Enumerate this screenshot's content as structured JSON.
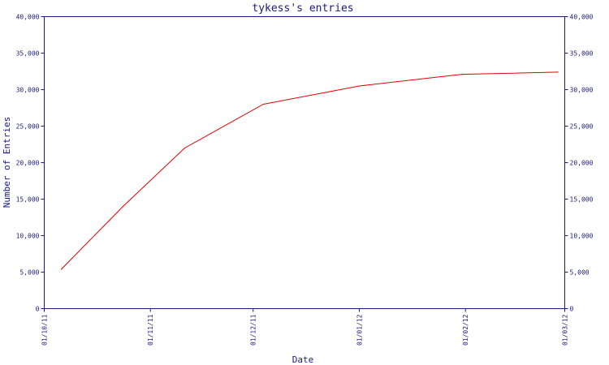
{
  "chart_data": {
    "type": "line",
    "title": "tykess's entries",
    "xlabel": "Date",
    "ylabel": "Number of Entries",
    "ylim": [
      0,
      40000
    ],
    "yticks": [
      0,
      5000,
      10000,
      15000,
      20000,
      25000,
      30000,
      35000,
      40000
    ],
    "ytick_labels": [
      "0",
      "5,000",
      "10,000",
      "15,000",
      "20,000",
      "25,000",
      "30,000",
      "35,000",
      "40,000"
    ],
    "xlim": [
      "2011-10-01",
      "2012-03-01"
    ],
    "xticks": [
      "2011-10-01",
      "2011-11-01",
      "2011-12-01",
      "2012-01-01",
      "2012-02-01",
      "2012-03-01"
    ],
    "xtick_labels": [
      "01/10/11",
      "01/11/11",
      "01/12/11",
      "01/01/12",
      "01/02/12",
      "01/03/12"
    ],
    "grid": false,
    "series": [
      {
        "color": "#e00000",
        "points": [
          [
            "2011-10-06",
            5400
          ],
          [
            "2011-10-24",
            14000
          ],
          [
            "2011-11-11",
            22000
          ],
          [
            "2011-12-04",
            28000
          ],
          [
            "2012-01-01",
            30500
          ],
          [
            "2012-01-31",
            32100
          ],
          [
            "2012-02-28",
            32400
          ]
        ]
      }
    ],
    "colors": {
      "axis": "#1a1a80",
      "line": "#e00000"
    }
  }
}
